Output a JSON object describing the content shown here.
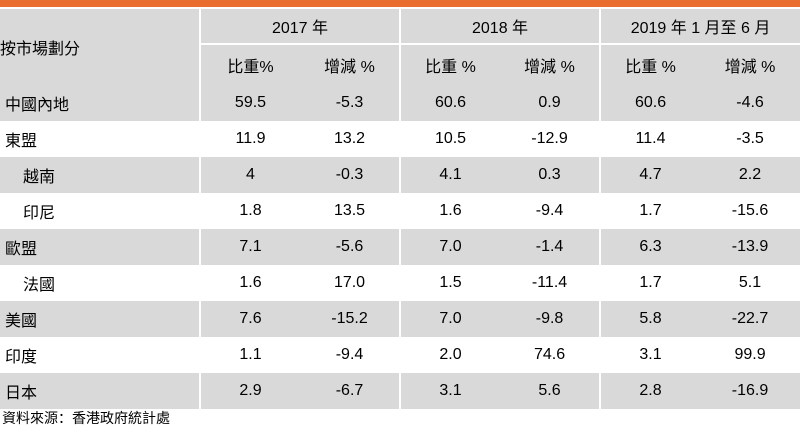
{
  "header": {
    "market_label": "按市場劃分",
    "years": [
      "2017 年",
      "2018 年",
      "2019 年 1 月至 6 月"
    ],
    "share_label": "比重%",
    "share_label_spaced": "比重 %",
    "change_label": "增減 %"
  },
  "rows": [
    {
      "name": "中國內地",
      "sub": false,
      "values": [
        "59.5",
        "-5.3",
        "60.6",
        "0.9",
        "60.6",
        "-4.6"
      ]
    },
    {
      "name": "東盟",
      "sub": false,
      "values": [
        "11.9",
        "13.2",
        "10.5",
        "-12.9",
        "11.4",
        "-3.5"
      ]
    },
    {
      "name": "越南",
      "sub": true,
      "values": [
        "4",
        "-0.3",
        "4.1",
        "0.3",
        "4.7",
        "2.2"
      ]
    },
    {
      "name": "印尼",
      "sub": true,
      "values": [
        "1.8",
        "13.5",
        "1.6",
        "-9.4",
        "1.7",
        "-15.6"
      ]
    },
    {
      "name": "歐盟",
      "sub": false,
      "values": [
        "7.1",
        "-5.6",
        "7.0",
        "-1.4",
        "6.3",
        "-13.9"
      ]
    },
    {
      "name": "法國",
      "sub": true,
      "values": [
        "1.6",
        "17.0",
        "1.5",
        "-11.4",
        "1.7",
        "5.1"
      ]
    },
    {
      "name": "美國",
      "sub": false,
      "values": [
        "7.6",
        "-15.2",
        "7.0",
        "-9.8",
        "5.8",
        "-22.7"
      ]
    },
    {
      "name": "印度",
      "sub": false,
      "values": [
        "1.1",
        "-9.4",
        "2.0",
        "74.6",
        "3.1",
        "99.9"
      ]
    },
    {
      "name": "日本",
      "sub": false,
      "values": [
        "2.9",
        "-6.7",
        "3.1",
        "5.6",
        "2.8",
        "-16.9"
      ]
    }
  ],
  "source": "資料來源：香港政府統計處",
  "colors": {
    "accent_bar": "#E96D2F",
    "shade": "#D9D9D9"
  }
}
